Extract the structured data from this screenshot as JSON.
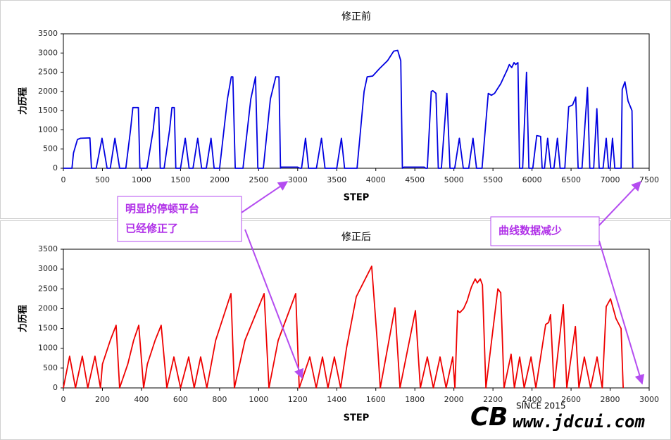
{
  "chart_data": [
    {
      "type": "line",
      "title": "修正前",
      "x_label": "STEP",
      "y_label": "力历程",
      "color": "#0000e0",
      "xlim": [
        0,
        7500
      ],
      "ylim": [
        0,
        3500
      ],
      "xticks": [
        0,
        500,
        1000,
        1500,
        2000,
        2500,
        3000,
        3500,
        4000,
        4500,
        5000,
        5500,
        6000,
        6500,
        7000,
        7500
      ],
      "yticks": [
        0,
        500,
        1000,
        1500,
        2000,
        2500,
        3000,
        3500
      ],
      "x": [
        0,
        110,
        130,
        180,
        220,
        340,
        360,
        420,
        495,
        560,
        600,
        660,
        720,
        800,
        860,
        890,
        960,
        980,
        1070,
        1150,
        1180,
        1220,
        1240,
        1290,
        1360,
        1390,
        1420,
        1440,
        1500,
        1560,
        1610,
        1660,
        1720,
        1770,
        1830,
        1890,
        1930,
        2000,
        2100,
        2150,
        2170,
        2200,
        2300,
        2400,
        2460,
        2490,
        2560,
        2650,
        2720,
        2760,
        2780,
        2790,
        3000,
        3030,
        3050,
        3100,
        3140,
        3240,
        3305,
        3350,
        3500,
        3560,
        3600,
        3760,
        3850,
        3890,
        3960,
        4050,
        4150,
        4230,
        4280,
        4320,
        4340,
        4360,
        4620,
        4640,
        4660,
        4710,
        4730,
        4770,
        4800,
        4840,
        4910,
        4950,
        5010,
        5070,
        5120,
        5190,
        5245,
        5290,
        5360,
        5440,
        5480,
        5520,
        5600,
        5640,
        5680,
        5710,
        5740,
        5770,
        5790,
        5820,
        5840,
        5880,
        5930,
        5960,
        6010,
        6060,
        6110,
        6130,
        6160,
        6200,
        6240,
        6280,
        6325,
        6360,
        6420,
        6470,
        6520,
        6560,
        6590,
        6640,
        6710,
        6740,
        6790,
        6830,
        6860,
        6910,
        6950,
        6980,
        7000,
        7030,
        7060,
        7140,
        7155,
        7190,
        7230,
        7280,
        7290
      ],
      "values": [
        0,
        0,
        400,
        750,
        780,
        790,
        0,
        0,
        780,
        0,
        0,
        780,
        0,
        0,
        1000,
        1580,
        1580,
        0,
        0,
        1000,
        1580,
        1580,
        0,
        0,
        1000,
        1580,
        1580,
        0,
        0,
        780,
        0,
        0,
        780,
        0,
        0,
        780,
        0,
        0,
        1800,
        2380,
        2380,
        0,
        0,
        1800,
        2380,
        0,
        0,
        1800,
        2380,
        2380,
        0,
        30,
        30,
        0,
        0,
        780,
        0,
        0,
        780,
        0,
        0,
        780,
        0,
        0,
        2000,
        2380,
        2400,
        2600,
        2800,
        3050,
        3070,
        2800,
        0,
        30,
        30,
        0,
        0,
        2000,
        2020,
        1950,
        0,
        0,
        1950,
        0,
        0,
        780,
        0,
        0,
        780,
        0,
        0,
        1950,
        1900,
        1950,
        2200,
        2380,
        2550,
        2700,
        2620,
        2750,
        2700,
        2750,
        0,
        0,
        2500,
        0,
        0,
        850,
        830,
        0,
        0,
        780,
        0,
        0,
        780,
        0,
        0,
        1600,
        1650,
        1850,
        0,
        0,
        2100,
        0,
        0,
        1550,
        0,
        0,
        780,
        0,
        0,
        780,
        0,
        0,
        2050,
        2250,
        1750,
        1500,
        0
      ]
    },
    {
      "type": "line",
      "title": "修正后",
      "x_label": "STEP",
      "y_label": "力历程",
      "color": "#ee0000",
      "xlim": [
        0,
        3000
      ],
      "ylim": [
        0,
        3500
      ],
      "xticks": [
        0,
        200,
        400,
        600,
        800,
        1000,
        1200,
        1400,
        1600,
        1800,
        2000,
        2200,
        2400,
        2600,
        2800,
        3000
      ],
      "yticks": [
        0,
        500,
        1000,
        1500,
        2000,
        2500,
        3000,
        3500
      ],
      "x": [
        0,
        32,
        62,
        97,
        125,
        162,
        190,
        200,
        240,
        270,
        288,
        330,
        360,
        386,
        411,
        430,
        470,
        501,
        530,
        566,
        600,
        642,
        670,
        703,
        735,
        780,
        858,
        876,
        930,
        1028,
        1053,
        1100,
        1190,
        1208,
        1262,
        1295,
        1327,
        1355,
        1388,
        1420,
        1450,
        1500,
        1579,
        1610,
        1623,
        1698,
        1724,
        1803,
        1828,
        1864,
        1895,
        1929,
        1960,
        1994,
        2005,
        2019,
        2030,
        2050,
        2068,
        2080,
        2090,
        2109,
        2120,
        2135,
        2146,
        2164,
        2225,
        2240,
        2257,
        2293,
        2310,
        2337,
        2360,
        2395,
        2420,
        2470,
        2485,
        2495,
        2513,
        2560,
        2578,
        2622,
        2640,
        2668,
        2700,
        2733,
        2760,
        2780,
        2802,
        2830,
        2856,
        2867
      ],
      "values": [
        0,
        800,
        0,
        800,
        0,
        800,
        0,
        600,
        1200,
        1580,
        0,
        600,
        1200,
        1580,
        0,
        600,
        1200,
        1580,
        0,
        780,
        0,
        780,
        0,
        780,
        0,
        1200,
        2380,
        0,
        1200,
        2380,
        0,
        1200,
        2380,
        0,
        780,
        0,
        780,
        0,
        780,
        0,
        1000,
        2300,
        3070,
        1000,
        0,
        2020,
        0,
        1950,
        0,
        780,
        0,
        780,
        0,
        780,
        0,
        1950,
        1900,
        2000,
        2200,
        2400,
        2550,
        2750,
        2650,
        2750,
        2600,
        0,
        2500,
        2400,
        0,
        850,
        0,
        780,
        0,
        780,
        0,
        1600,
        1650,
        1850,
        0,
        2100,
        0,
        1550,
        0,
        780,
        0,
        780,
        0,
        2050,
        2250,
        1750,
        1500,
        0
      ]
    }
  ],
  "annotations": {
    "platform_note": [
      "明显的停顿平台",
      "已经修正了"
    ],
    "data_note": "曲线数据减少"
  },
  "watermark": {
    "since": "SINCE 2015",
    "site": "www.jdcui.com"
  }
}
